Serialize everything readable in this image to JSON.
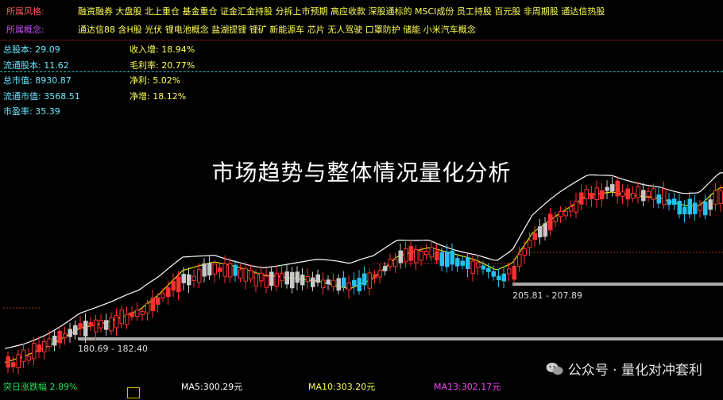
{
  "header": {
    "style_label": "所属风格:",
    "style_text": "融资融券 大盘股 北上重仓 基金重仓 证金汇金持股 分拆上市预期 高应收款 深股通标的 MSCI成份 员工持股 百元股 非周期股 通达信热股",
    "concept_label": "所属概念:",
    "concept_text": "通达信88 含H股 光伏 锂电池概念 盐湖提锂 锂矿 新能源车 芯片 无人驾驶 口罩防护 储能 小米汽车概念"
  },
  "stats": {
    "total_shares": "总股本: 29.09",
    "float_shares": "流通股本: 11.62",
    "market_cap": "总市值: 8930.87",
    "float_cap": "流通市值: 3568.51",
    "pe": "市盈率: 35.39",
    "revenue_growth": "收入增: 18.94%",
    "gross_margin": "毛利率: 20.77%",
    "net_profit": "净利: 5.02%",
    "net_growth": "净增: 18.12%"
  },
  "headline": "市场趋势与整体情况量化分析",
  "price_levels": {
    "high_zone": "205.81 - 207.89",
    "low_zone": "180.69 - 182.40"
  },
  "bottom": {
    "left_text": "突日涨跌幅 2.89%",
    "ma5": "MA5:300.29元",
    "ma10": "MA10:303.20元",
    "ma13": "MA13:302.17元"
  },
  "watermark": {
    "text": "公众号 · 量化对冲套利",
    "icon": "wechat-icon"
  },
  "colors": {
    "up": "#ff3030",
    "down": "#24c0f0",
    "neutral": "#c8c8c8",
    "ma_white": "#ffffff",
    "ma_yellow": "#e6e600",
    "level_line": "#a8a8a8",
    "ma13_label": "#ff44ff"
  }
}
